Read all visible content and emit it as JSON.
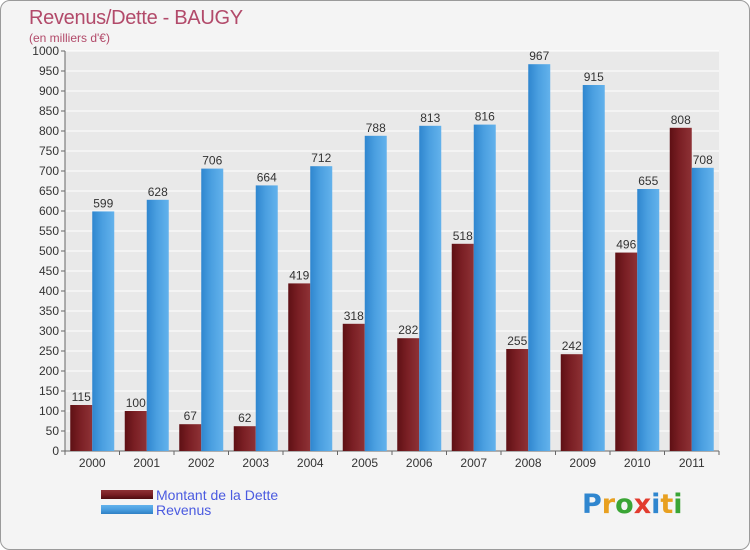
{
  "title": "Revenus/Dette - BAUGY",
  "subtitle": "(en milliers d'€)",
  "brand": "Proxiti",
  "colors": {
    "debt": "#7a1f24",
    "revenue": "#4a9fe0",
    "grid": "#ffffff",
    "text": "#333333",
    "title": "#b24a6a",
    "legend_text": "#4a5ae0"
  },
  "chart_data": {
    "type": "bar",
    "title": "Revenus/Dette - BAUGY",
    "ylabel": "(en milliers d'€)",
    "xlabel": "",
    "categories": [
      "2000",
      "2001",
      "2002",
      "2003",
      "2004",
      "2005",
      "2006",
      "2007",
      "2008",
      "2009",
      "2010",
      "2011"
    ],
    "series": [
      {
        "name": "Montant de la Dette",
        "values": [
          115,
          100,
          67,
          62,
          419,
          318,
          282,
          518,
          255,
          242,
          496,
          808
        ]
      },
      {
        "name": "Revenus",
        "values": [
          599,
          628,
          706,
          664,
          712,
          788,
          813,
          816,
          967,
          915,
          655,
          708
        ]
      }
    ],
    "ylim": [
      0,
      1000
    ],
    "yticks": [
      0,
      50,
      100,
      150,
      200,
      250,
      300,
      350,
      400,
      450,
      500,
      550,
      600,
      650,
      700,
      750,
      800,
      850,
      900,
      950,
      1000
    ],
    "grid": true,
    "legend": "bottom-left"
  }
}
